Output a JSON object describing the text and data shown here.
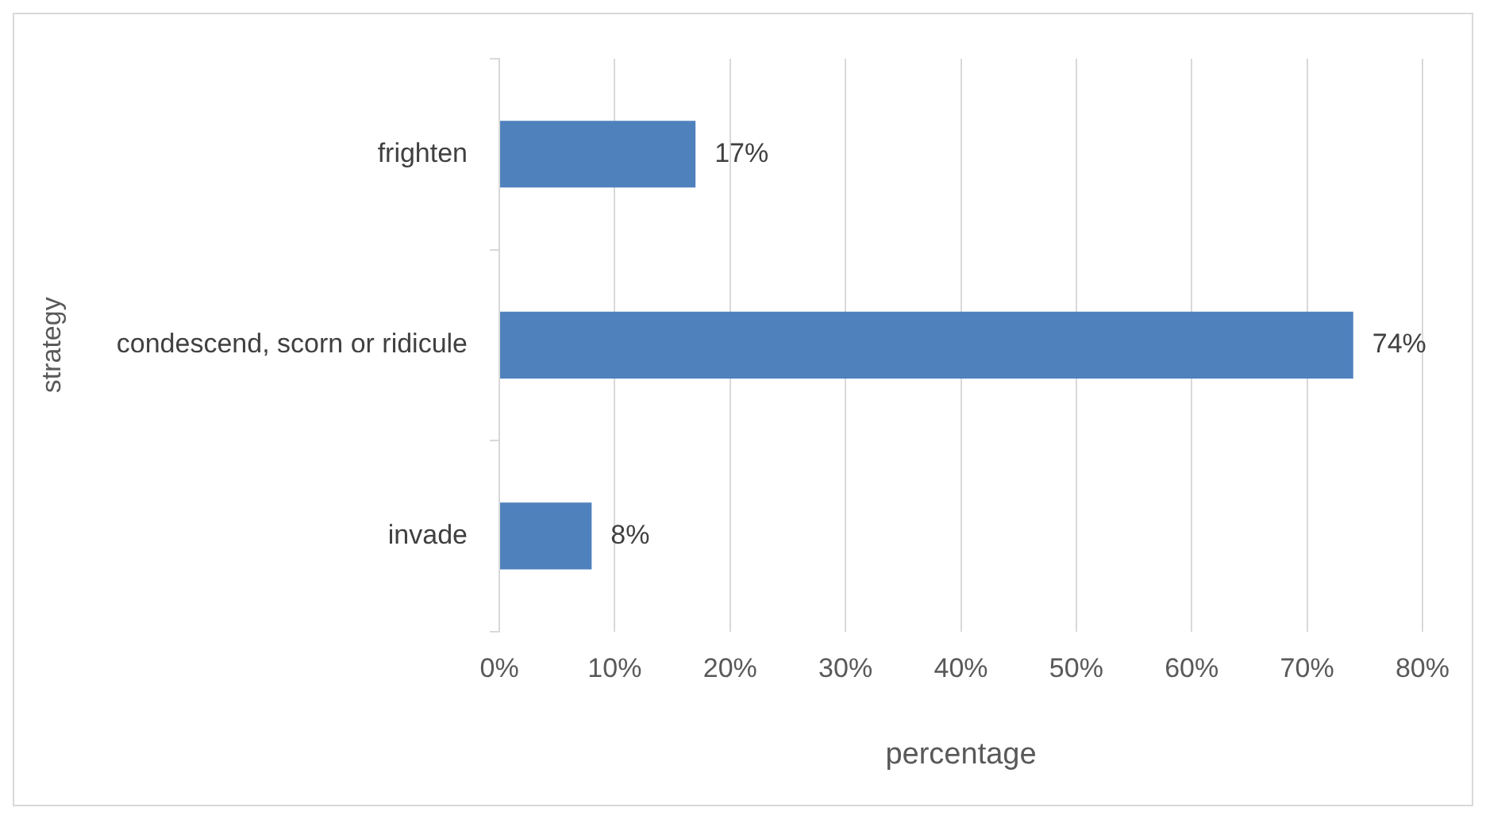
{
  "chart_data": {
    "type": "bar",
    "orientation": "horizontal",
    "xlabel": "percentage",
    "ylabel": "strategy",
    "categories": [
      "frighten",
      "condescend, scorn or ridicule",
      "invade"
    ],
    "values": [
      17,
      74,
      8
    ],
    "value_labels": [
      "17%",
      "74%",
      "8%"
    ],
    "color": "#4f81bd",
    "xlim": [
      0,
      80
    ],
    "xticks": [
      {
        "value": 0,
        "label": "0%"
      },
      {
        "value": 10,
        "label": "10%"
      },
      {
        "value": 20,
        "label": "20%"
      },
      {
        "value": 30,
        "label": "30%"
      },
      {
        "value": 40,
        "label": "40%"
      },
      {
        "value": 50,
        "label": "50%"
      },
      {
        "value": 60,
        "label": "60%"
      },
      {
        "value": 70,
        "label": "70%"
      },
      {
        "value": 80,
        "label": "80%"
      }
    ],
    "grid": "x",
    "legend": false
  }
}
